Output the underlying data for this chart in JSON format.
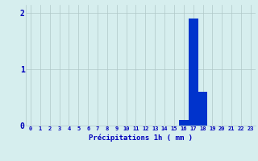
{
  "hours": [
    0,
    1,
    2,
    3,
    4,
    5,
    6,
    7,
    8,
    9,
    10,
    11,
    12,
    13,
    14,
    15,
    16,
    17,
    18,
    19,
    20,
    21,
    22,
    23
  ],
  "values": [
    0,
    0,
    0,
    0,
    0,
    0,
    0,
    0,
    0,
    0,
    0,
    0,
    0,
    0,
    0,
    0,
    0.1,
    1.9,
    0.6,
    0,
    0,
    0,
    0,
    0
  ],
  "bar_color": "#0033cc",
  "background_color": "#d6eeee",
  "grid_color": "#b0c8c8",
  "xlabel": "Précipitations 1h ( mm )",
  "xlabel_color": "#0000bb",
  "tick_color": "#0000bb",
  "ylim": [
    0,
    2.15
  ],
  "yticks": [
    0,
    1,
    2
  ],
  "figsize": [
    3.2,
    2.0
  ],
  "dpi": 100
}
